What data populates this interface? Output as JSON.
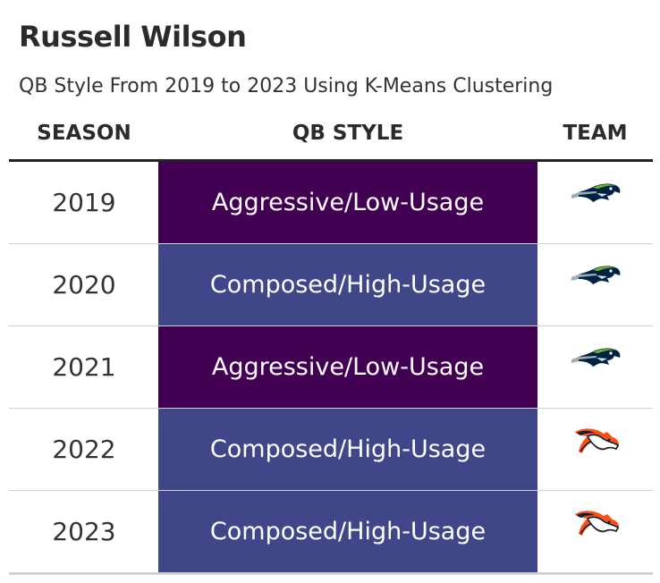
{
  "title": "Russell Wilson",
  "subtitle": "QB Style From 2019 to 2023 Using K-Means Clustering",
  "headers": {
    "season": "SEASON",
    "style": "QB STYLE",
    "team": "TEAM"
  },
  "colors": {
    "Aggressive/Low-Usage": "#420052",
    "Composed/High-Usage": "#404788"
  },
  "chart_data": {
    "type": "table",
    "title": "Russell Wilson",
    "subtitle": "QB Style From 2019 to 2023 Using K-Means Clustering",
    "columns": [
      "SEASON",
      "QB STYLE",
      "TEAM"
    ],
    "rows": [
      {
        "season": "2019",
        "style": "Aggressive/Low-Usage",
        "team_icon": "seahawks-logo-icon"
      },
      {
        "season": "2020",
        "style": "Composed/High-Usage",
        "team_icon": "seahawks-logo-icon"
      },
      {
        "season": "2021",
        "style": "Aggressive/Low-Usage",
        "team_icon": "seahawks-logo-icon"
      },
      {
        "season": "2022",
        "style": "Composed/High-Usage",
        "team_icon": "broncos-logo-icon"
      },
      {
        "season": "2023",
        "style": "Composed/High-Usage",
        "team_icon": "broncos-logo-icon"
      }
    ]
  }
}
